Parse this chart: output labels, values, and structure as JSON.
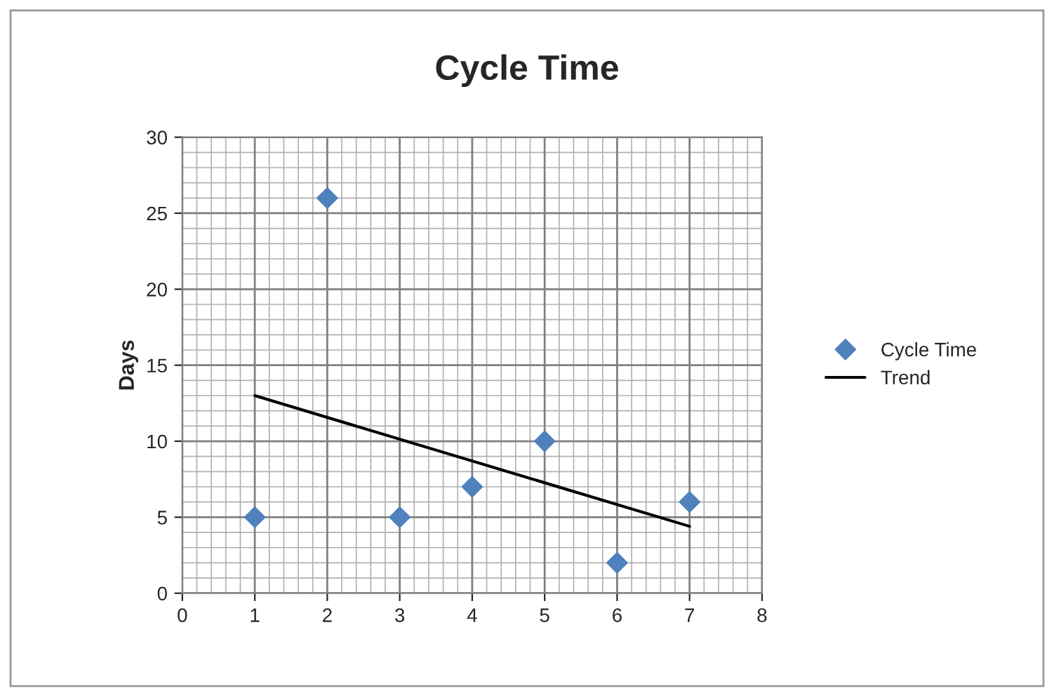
{
  "chart_data": {
    "type": "scatter",
    "title": "Cycle Time",
    "ylabel": "Days",
    "series": [
      {
        "name": "Cycle Time",
        "color": "#4f81bd",
        "marker": "diamond",
        "x": [
          1,
          2,
          3,
          4,
          5,
          6,
          7
        ],
        "values": [
          5,
          26,
          5,
          7,
          10,
          2,
          6
        ]
      },
      {
        "name": "Trend",
        "type": "line",
        "color": "#000000",
        "marker": "none",
        "line_style": "solid",
        "x": [
          1,
          7
        ],
        "values": [
          13.0,
          4.4
        ]
      }
    ],
    "xlim": [
      0,
      8
    ],
    "xticks": [
      0,
      1,
      2,
      3,
      4,
      5,
      6,
      7,
      8
    ],
    "ylim": [
      0,
      30
    ],
    "yticks": [
      0,
      5,
      10,
      15,
      20,
      25,
      30
    ],
    "grid": true,
    "legend": "right"
  }
}
